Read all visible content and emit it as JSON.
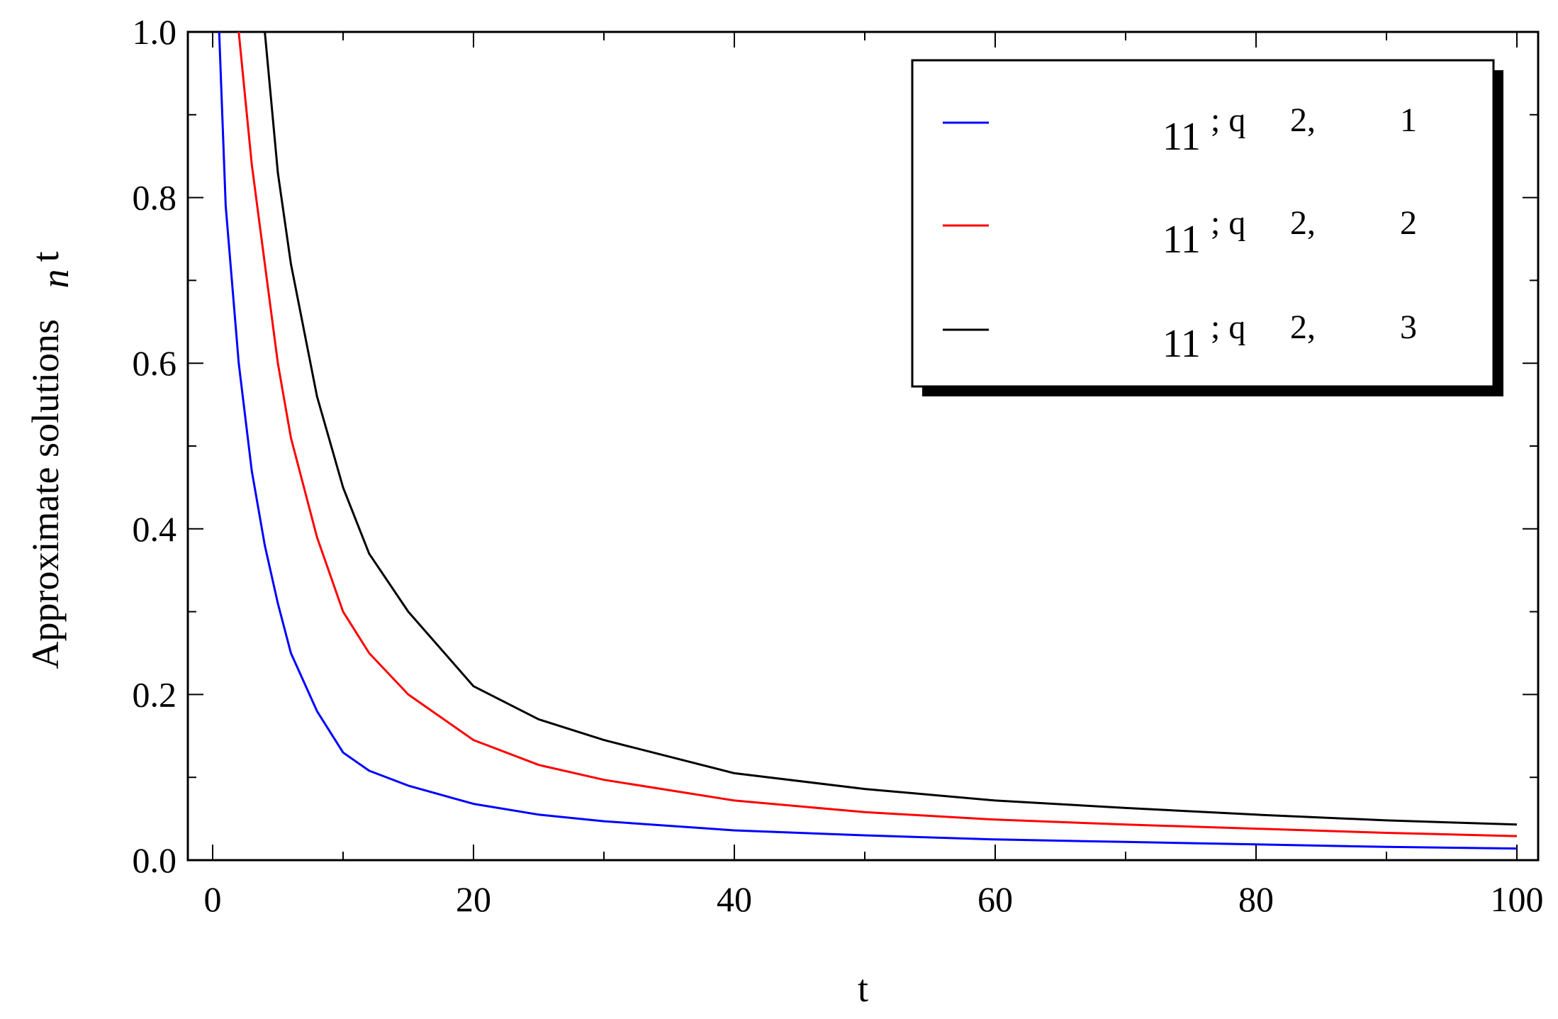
{
  "chart_data": {
    "type": "line",
    "xlabel": "t",
    "ylabel": "Approximate solutions",
    "ylabel_symbol": "n",
    "ylabel_arg": "t",
    "xlim": [
      0,
      100
    ],
    "ylim": [
      0,
      1.0
    ],
    "x_ticks": [
      "0",
      "20",
      "40",
      "60",
      "80",
      "100"
    ],
    "y_ticks": [
      "0.0",
      "0.2",
      "0.4",
      "0.6",
      "0.8",
      "1.0"
    ],
    "legend_position": "top-right",
    "grid": false,
    "x": [
      0.5,
      1,
      2,
      3,
      4,
      5,
      6,
      8,
      10,
      12,
      15,
      20,
      25,
      30,
      40,
      50,
      60,
      70,
      80,
      90,
      100
    ],
    "series": [
      {
        "legend": [
          "11",
          "; q",
          "2,",
          "1"
        ],
        "color": "#0000ff",
        "values": [
          1.0,
          0.79,
          0.6,
          0.47,
          0.38,
          0.31,
          0.25,
          0.18,
          0.13,
          0.108,
          0.09,
          0.068,
          0.055,
          0.047,
          0.036,
          0.03,
          0.025,
          0.022,
          0.019,
          0.016,
          0.014
        ]
      },
      {
        "legend": [
          "11",
          "; q",
          "2,",
          "2"
        ],
        "color": "#ff0000",
        "values": [
          null,
          null,
          1.0,
          0.84,
          0.72,
          0.6,
          0.51,
          0.39,
          0.3,
          0.25,
          0.2,
          0.145,
          0.115,
          0.097,
          0.072,
          0.058,
          0.049,
          0.043,
          0.038,
          0.033,
          0.029
        ]
      },
      {
        "legend": [
          "11",
          "; q",
          "2,",
          "3"
        ],
        "color": "#000000",
        "values": [
          null,
          null,
          null,
          null,
          1.0,
          0.83,
          0.72,
          0.56,
          0.45,
          0.37,
          0.3,
          0.21,
          0.17,
          0.145,
          0.105,
          0.086,
          0.072,
          0.063,
          0.055,
          0.048,
          0.043
        ]
      }
    ]
  }
}
